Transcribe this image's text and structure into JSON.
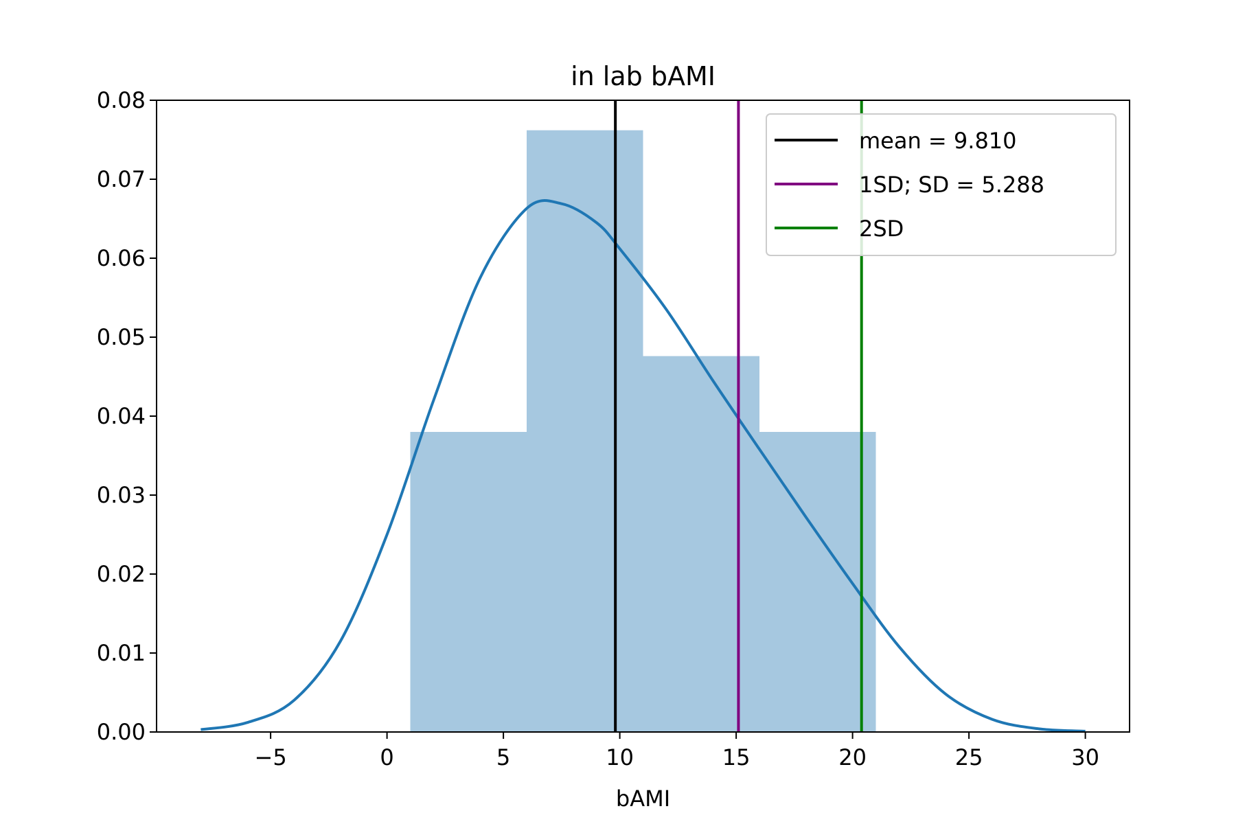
{
  "chart_data": {
    "type": "histogram",
    "title": "in lab bAMI",
    "xlabel": "bAMI",
    "ylabel": "",
    "xlim": [
      -9.9,
      31.9
    ],
    "ylim": [
      0,
      0.08
    ],
    "grid": false,
    "legend_placement": "top-right",
    "xticks": [
      -5,
      0,
      5,
      10,
      15,
      20,
      25,
      30
    ],
    "xtick_labels": [
      "−5",
      "0",
      "5",
      "10",
      "15",
      "20",
      "25",
      "30"
    ],
    "yticks": [
      0,
      0.01,
      0.02,
      0.03,
      0.04,
      0.05,
      0.06,
      0.07,
      0.08
    ],
    "ytick_labels": [
      "0.00",
      "0.01",
      "0.02",
      "0.03",
      "0.04",
      "0.05",
      "0.06",
      "0.07",
      "0.08"
    ],
    "histogram": {
      "bins": [
        {
          "x0": 1,
          "x1": 6,
          "density": 0.038
        },
        {
          "x0": 6,
          "x1": 11,
          "density": 0.0762
        },
        {
          "x0": 11,
          "x1": 16,
          "density": 0.0476
        },
        {
          "x0": 16,
          "x1": 21,
          "density": 0.038
        }
      ],
      "color": "#a6c8e0"
    },
    "kde": {
      "color": "#1f77b4",
      "x": [
        -8,
        -6,
        -4,
        -2,
        0,
        2,
        4,
        6,
        7.5,
        9,
        10,
        12,
        14,
        16,
        18,
        20,
        22,
        24,
        26,
        28,
        30
      ],
      "y": [
        0.0003,
        0.0012,
        0.004,
        0.0115,
        0.025,
        0.042,
        0.0575,
        0.0663,
        0.0669,
        0.0645,
        0.0612,
        0.0535,
        0.0445,
        0.0358,
        0.0272,
        0.0188,
        0.0108,
        0.0048,
        0.0016,
        0.0004,
        0.0001
      ]
    },
    "vlines": [
      {
        "x": 9.81,
        "color": "#000000",
        "label": "mean = 9.810"
      },
      {
        "x": 15.098,
        "color": "#800080",
        "label": "1SD; SD = 5.288"
      },
      {
        "x": 20.386,
        "color": "#008000",
        "label": "2SD"
      }
    ]
  }
}
